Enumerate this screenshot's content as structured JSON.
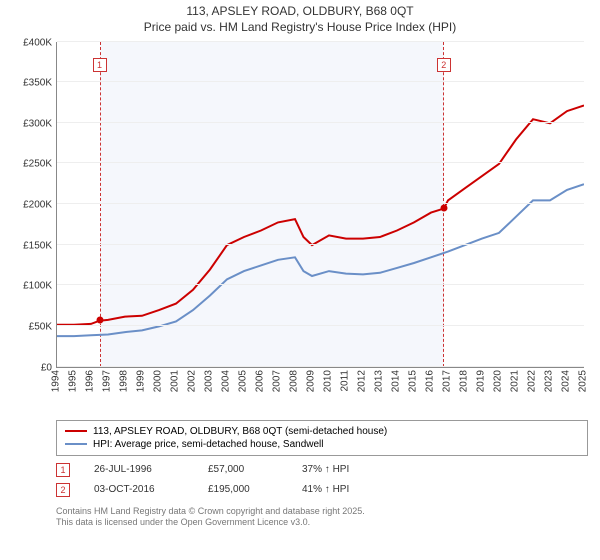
{
  "title_line1": "113, APSLEY ROAD, OLDBURY, B68 0QT",
  "title_line2": "Price paid vs. HM Land Registry's House Price Index (HPI)",
  "chart": {
    "type": "line",
    "background_color": "#ffffff",
    "grid_color": "#eeeeee",
    "shaded_fill": "rgba(200,210,240,0.18)",
    "shaded_border": "#cc3333",
    "y": {
      "min": 0,
      "max": 400000,
      "step": 50000,
      "prefix": "£",
      "fontsize": 10,
      "tick_labels": [
        "£0",
        "£50K",
        "£100K",
        "£150K",
        "£200K",
        "£250K",
        "£300K",
        "£350K",
        "£400K"
      ]
    },
    "x": {
      "min": 1994,
      "max": 2025,
      "step": 1,
      "fontsize": 10
    },
    "series": [
      {
        "name": "price_paid",
        "color": "#cc0000",
        "width": 2,
        "points": [
          [
            1994,
            52000
          ],
          [
            1995,
            52000
          ],
          [
            1996,
            53000
          ],
          [
            1996.5,
            57000
          ],
          [
            1997,
            58000
          ],
          [
            1998,
            62000
          ],
          [
            1999,
            63000
          ],
          [
            2000,
            70000
          ],
          [
            2001,
            78000
          ],
          [
            2002,
            95000
          ],
          [
            2003,
            120000
          ],
          [
            2004,
            150000
          ],
          [
            2005,
            160000
          ],
          [
            2006,
            168000
          ],
          [
            2007,
            178000
          ],
          [
            2008,
            182000
          ],
          [
            2008.5,
            160000
          ],
          [
            2009,
            150000
          ],
          [
            2010,
            162000
          ],
          [
            2011,
            158000
          ],
          [
            2012,
            158000
          ],
          [
            2013,
            160000
          ],
          [
            2014,
            168000
          ],
          [
            2015,
            178000
          ],
          [
            2016,
            190000
          ],
          [
            2016.75,
            195000
          ],
          [
            2017,
            205000
          ],
          [
            2018,
            220000
          ],
          [
            2019,
            235000
          ],
          [
            2020,
            250000
          ],
          [
            2021,
            280000
          ],
          [
            2022,
            305000
          ],
          [
            2023,
            300000
          ],
          [
            2024,
            315000
          ],
          [
            2025,
            322000
          ]
        ]
      },
      {
        "name": "hpi",
        "color": "#6a8fc7",
        "width": 2,
        "points": [
          [
            1994,
            38000
          ],
          [
            1995,
            38000
          ],
          [
            1996,
            39000
          ],
          [
            1997,
            40000
          ],
          [
            1998,
            43000
          ],
          [
            1999,
            45000
          ],
          [
            2000,
            50000
          ],
          [
            2001,
            56000
          ],
          [
            2002,
            70000
          ],
          [
            2003,
            88000
          ],
          [
            2004,
            108000
          ],
          [
            2005,
            118000
          ],
          [
            2006,
            125000
          ],
          [
            2007,
            132000
          ],
          [
            2008,
            135000
          ],
          [
            2008.5,
            118000
          ],
          [
            2009,
            112000
          ],
          [
            2010,
            118000
          ],
          [
            2011,
            115000
          ],
          [
            2012,
            114000
          ],
          [
            2013,
            116000
          ],
          [
            2014,
            122000
          ],
          [
            2015,
            128000
          ],
          [
            2016,
            135000
          ],
          [
            2017,
            142000
          ],
          [
            2018,
            150000
          ],
          [
            2019,
            158000
          ],
          [
            2020,
            165000
          ],
          [
            2021,
            185000
          ],
          [
            2022,
            205000
          ],
          [
            2023,
            205000
          ],
          [
            2024,
            218000
          ],
          [
            2025,
            225000
          ]
        ]
      }
    ],
    "markers": [
      {
        "idx": "1",
        "x": 1996.5,
        "y": 57000,
        "color": "#cc0000"
      },
      {
        "idx": "2",
        "x": 2016.75,
        "y": 195000,
        "color": "#cc0000"
      }
    ],
    "shaded_range": [
      1996.5,
      2016.75
    ]
  },
  "legend": [
    {
      "color": "#cc0000",
      "label": "113, APSLEY ROAD, OLDBURY, B68 0QT (semi-detached house)"
    },
    {
      "color": "#6a8fc7",
      "label": "HPI: Average price, semi-detached house, Sandwell"
    }
  ],
  "transactions": [
    {
      "idx": "1",
      "date": "26-JUL-1996",
      "price": "£57,000",
      "delta": "37% ↑ HPI"
    },
    {
      "idx": "2",
      "date": "03-OCT-2016",
      "price": "£195,000",
      "delta": "41% ↑ HPI"
    }
  ],
  "footer_line1": "Contains HM Land Registry data © Crown copyright and database right 2025.",
  "footer_line2": "This data is licensed under the Open Government Licence v3.0."
}
